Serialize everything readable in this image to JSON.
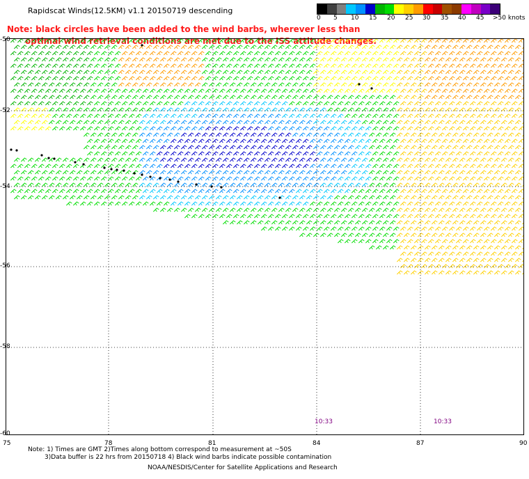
{
  "title": "Rapidscat Winds(12.5KM) v1.1 20150719 descending",
  "note": {
    "line1": "Note: black circles have been added to the wind barbs, wherever less than",
    "line2": "optimal wind retrieval conditions are met due to the ISS attitude changes."
  },
  "color_scale": {
    "labels": [
      "0",
      "5",
      "10",
      "15",
      "20",
      "25",
      "30",
      "35",
      "40",
      "45",
      ">50 knots"
    ],
    "colors": [
      "#000000",
      "#404040",
      "#808080",
      "#00c8ff",
      "#0090ff",
      "#0000cc",
      "#00b400",
      "#00dd00",
      "#ffff00",
      "#ffd000",
      "#ff9c00",
      "#ff0000",
      "#c80000",
      "#a05000",
      "#8b3a00",
      "#ff00ff",
      "#c000c0",
      "#7a00c8",
      "#3c0078"
    ]
  },
  "latitude_labels": [
    "-50",
    "-52",
    "-54",
    "-56",
    "-58",
    "-60"
  ],
  "longitude_labels": [
    "75",
    "78",
    "81",
    "84",
    "87",
    "90"
  ],
  "time_labels": [
    "10:33",
    "10:33"
  ],
  "footer": {
    "line1": "Note: 1) Times are GMT 2)Times along bottom correspond to measurement at ~50S",
    "line2": "3)Data buffer is 22 hrs from 20150718 4) Black wind barbs indicate possible contamination",
    "credit": "NOAA/NESDIS/Center for Satellite Applications and Research"
  }
}
